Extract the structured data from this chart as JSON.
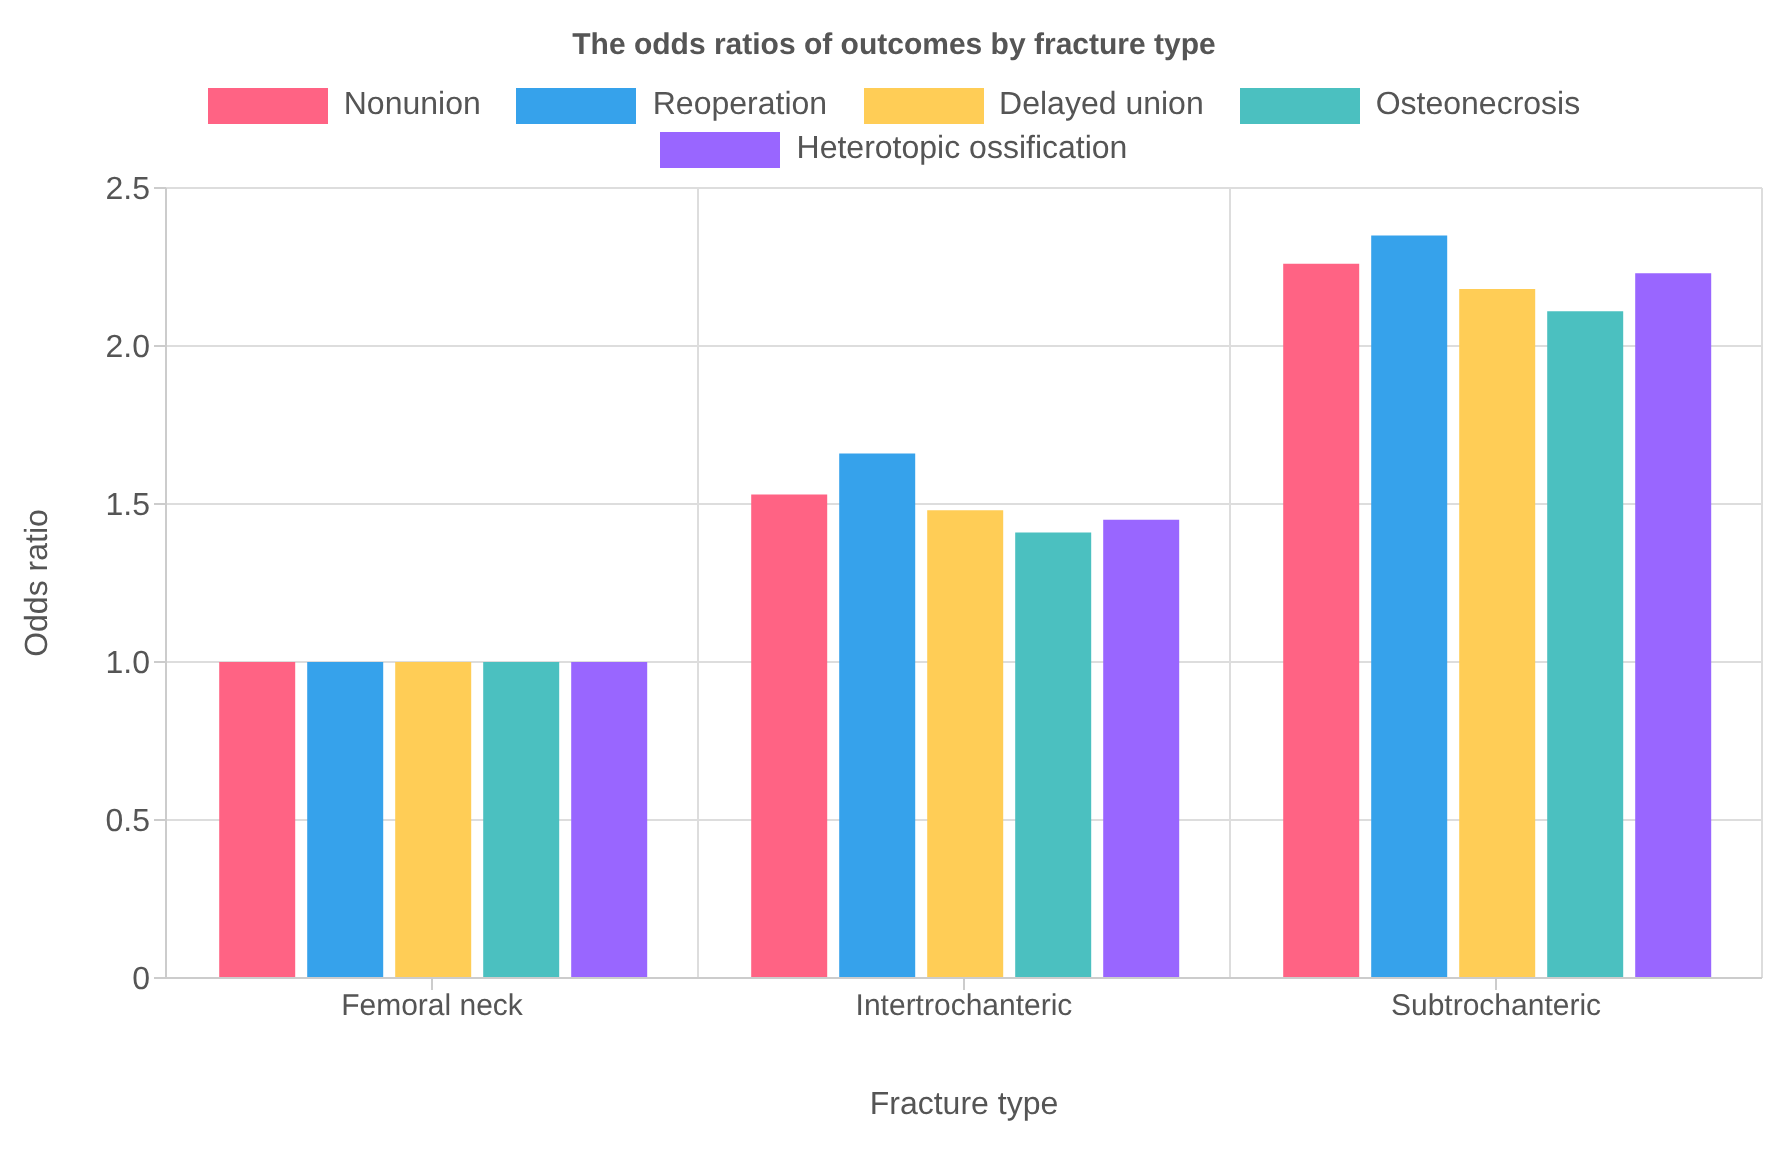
{
  "chart_data": {
    "type": "bar",
    "title": "The odds ratios of outcomes by fracture type",
    "xlabel": "Fracture type",
    "ylabel": "Odds ratio",
    "categories": [
      "Femoral neck",
      "Intertrochanteric",
      "Subtrochanteric"
    ],
    "series": [
      {
        "name": "Nonunion",
        "color": "#ff6384",
        "values": [
          1.0,
          1.53,
          2.26
        ]
      },
      {
        "name": "Reoperation",
        "color": "#36a2eb",
        "values": [
          1.0,
          1.66,
          2.35
        ]
      },
      {
        "name": "Delayed union",
        "color": "#ffcd56",
        "values": [
          1.0,
          1.48,
          2.18
        ]
      },
      {
        "name": "Osteonecrosis",
        "color": "#4bc0c0",
        "values": [
          1.0,
          1.41,
          2.11
        ]
      },
      {
        "name": "Heterotopic ossification",
        "color": "#9966ff",
        "values": [
          1.0,
          1.45,
          2.23
        ]
      }
    ],
    "ylim": [
      0,
      2.5
    ],
    "yticks": [
      0,
      0.5,
      {
        "value": 1,
        "label": "1.0"
      },
      1.5,
      {
        "value": 2,
        "label": "2.0"
      },
      2.5
    ],
    "grid": true,
    "legend": "top"
  }
}
